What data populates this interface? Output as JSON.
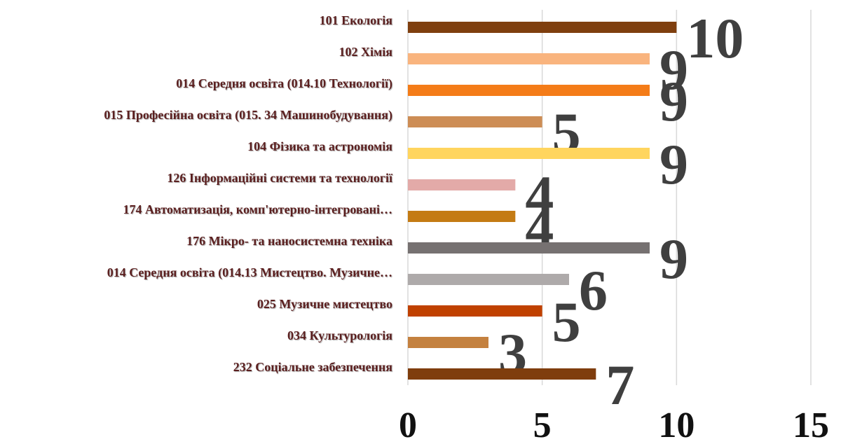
{
  "chart_data": {
    "type": "hbar",
    "categories": [
      "101 Екологія",
      "102 Хімія",
      "014 Середня освіта (014.10 Технології)",
      "015 Професійна освіта (015. 34 Машинобудування)",
      "104 Фізика та астрономія",
      "126 Інформаційні системи та технології",
      "174 Автоматизація, комп'ютерно-інтегровані…",
      "176 Мікро- та наносистемна техніка",
      "014 Середня освіта (014.13 Мистецтво. Музичне…",
      "025 Музичне мистецтво",
      "034 Культурологія",
      "232 Соціальне забезпечення"
    ],
    "values": [
      10,
      9,
      9,
      5,
      9,
      4,
      4,
      9,
      6,
      5,
      3,
      7
    ],
    "colors": [
      "#7f3f0f",
      "#f9b47e",
      "#f47c18",
      "#cd8d55",
      "#ffd55e",
      "#e3aaa8",
      "#c47b14",
      "#767171",
      "#aeaaaa",
      "#c04100",
      "#c4813f",
      "#7f3d0d"
    ],
    "xlim": [
      0,
      15
    ],
    "xticks": [
      0,
      5,
      10,
      15
    ],
    "grid": true
  }
}
